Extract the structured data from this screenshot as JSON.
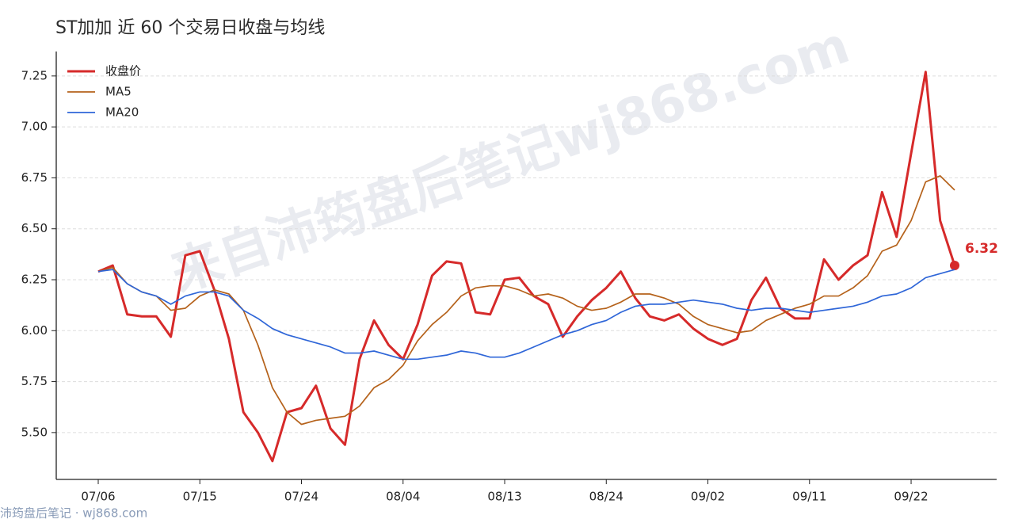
{
  "chart_data": {
    "type": "line",
    "title": "ST加加 近 60 个交易日收盘与均线",
    "watermark": "来自沛筠盘后笔记wj868.com",
    "footer": "沛筠盘后笔记 · wj868.com",
    "categories": [
      "07/06",
      null,
      null,
      null,
      null,
      null,
      null,
      "07/15",
      null,
      null,
      null,
      null,
      null,
      null,
      "07/24",
      null,
      null,
      null,
      null,
      null,
      null,
      "08/04",
      null,
      null,
      null,
      null,
      null,
      null,
      "08/13",
      null,
      null,
      null,
      null,
      null,
      null,
      "08/24",
      null,
      null,
      null,
      null,
      null,
      null,
      "09/02",
      null,
      null,
      null,
      null,
      null,
      null,
      "09/11",
      null,
      null,
      null,
      null,
      null,
      null,
      "09/22",
      null,
      null,
      null
    ],
    "ylim": [
      5.27,
      7.37
    ],
    "yticks": [
      {
        "value": 5.5,
        "label": "5.50"
      },
      5.75,
      {
        "value": 6.0,
        "label": "6.00"
      },
      6.25,
      {
        "value": 6.5,
        "label": "6.50"
      },
      6.75,
      {
        "value": 7.0,
        "label": "7.00"
      },
      7.25
    ],
    "grid": true,
    "legend": "upper left",
    "series": [
      {
        "name": "收盘价",
        "color": "#d62a2a",
        "width": 3,
        "values": [
          6.29,
          6.32,
          6.08,
          6.07,
          6.07,
          5.97,
          6.37,
          6.39,
          6.2,
          5.96,
          5.6,
          5.5,
          5.36,
          5.6,
          5.62,
          5.73,
          5.52,
          5.44,
          5.86,
          6.05,
          5.93,
          5.86,
          6.03,
          6.27,
          6.34,
          6.33,
          6.09,
          6.08,
          6.25,
          6.26,
          6.17,
          6.13,
          5.97,
          6.07,
          6.15,
          6.21,
          6.29,
          6.16,
          6.07,
          6.05,
          6.08,
          6.01,
          5.96,
          5.93,
          5.96,
          6.15,
          6.26,
          6.11,
          6.06,
          6.06,
          6.35,
          6.25,
          6.32,
          6.37,
          6.68,
          6.46,
          6.87,
          7.27,
          6.54,
          6.32
        ],
        "value_labels": [
          null,
          null,
          null,
          null,
          null,
          null,
          null,
          null,
          null,
          null,
          null,
          null,
          null,
          null,
          null,
          null,
          null,
          null,
          null,
          null,
          null,
          null,
          null,
          null,
          null,
          null,
          null,
          null,
          null,
          null,
          null,
          null,
          null,
          null,
          null,
          null,
          null,
          null,
          null,
          null,
          null,
          null,
          null,
          null,
          null,
          null,
          null,
          null,
          null,
          null,
          null,
          null,
          null,
          null,
          null,
          null,
          null,
          null,
          null,
          "6.32"
        ]
      },
      {
        "name": "MA5",
        "color": "#b5621b",
        "width": 1.7,
        "values": [
          6.29,
          6.31,
          6.23,
          6.19,
          6.17,
          6.1,
          6.11,
          6.17,
          6.2,
          6.18,
          6.1,
          5.93,
          5.72,
          5.6,
          5.54,
          5.56,
          5.57,
          5.58,
          5.63,
          5.72,
          5.76,
          5.83,
          5.95,
          6.03,
          6.09,
          6.17,
          6.21,
          6.22,
          6.22,
          6.2,
          6.17,
          6.18,
          6.16,
          6.12,
          6.1,
          6.11,
          6.14,
          6.18,
          6.18,
          6.16,
          6.13,
          6.07,
          6.03,
          6.01,
          5.99,
          6.0,
          6.05,
          6.08,
          6.11,
          6.13,
          6.17,
          6.17,
          6.21,
          6.27,
          6.39,
          6.42,
          6.54,
          6.73,
          6.76,
          6.69
        ]
      },
      {
        "name": "MA20",
        "color": "#2f66d8",
        "width": 1.7,
        "values": [
          6.29,
          6.3,
          6.23,
          6.19,
          6.17,
          6.13,
          6.17,
          6.19,
          6.19,
          6.17,
          6.1,
          6.06,
          6.01,
          5.98,
          5.96,
          5.94,
          5.92,
          5.89,
          5.89,
          5.9,
          5.88,
          5.86,
          5.86,
          5.87,
          5.88,
          5.9,
          5.89,
          5.87,
          5.87,
          5.89,
          5.92,
          5.95,
          5.98,
          6.0,
          6.03,
          6.05,
          6.09,
          6.12,
          6.13,
          6.13,
          6.14,
          6.15,
          6.14,
          6.13,
          6.11,
          6.1,
          6.11,
          6.11,
          6.1,
          6.09,
          6.1,
          6.11,
          6.12,
          6.14,
          6.17,
          6.18,
          6.21,
          6.26,
          6.28,
          6.3
        ]
      }
    ]
  }
}
